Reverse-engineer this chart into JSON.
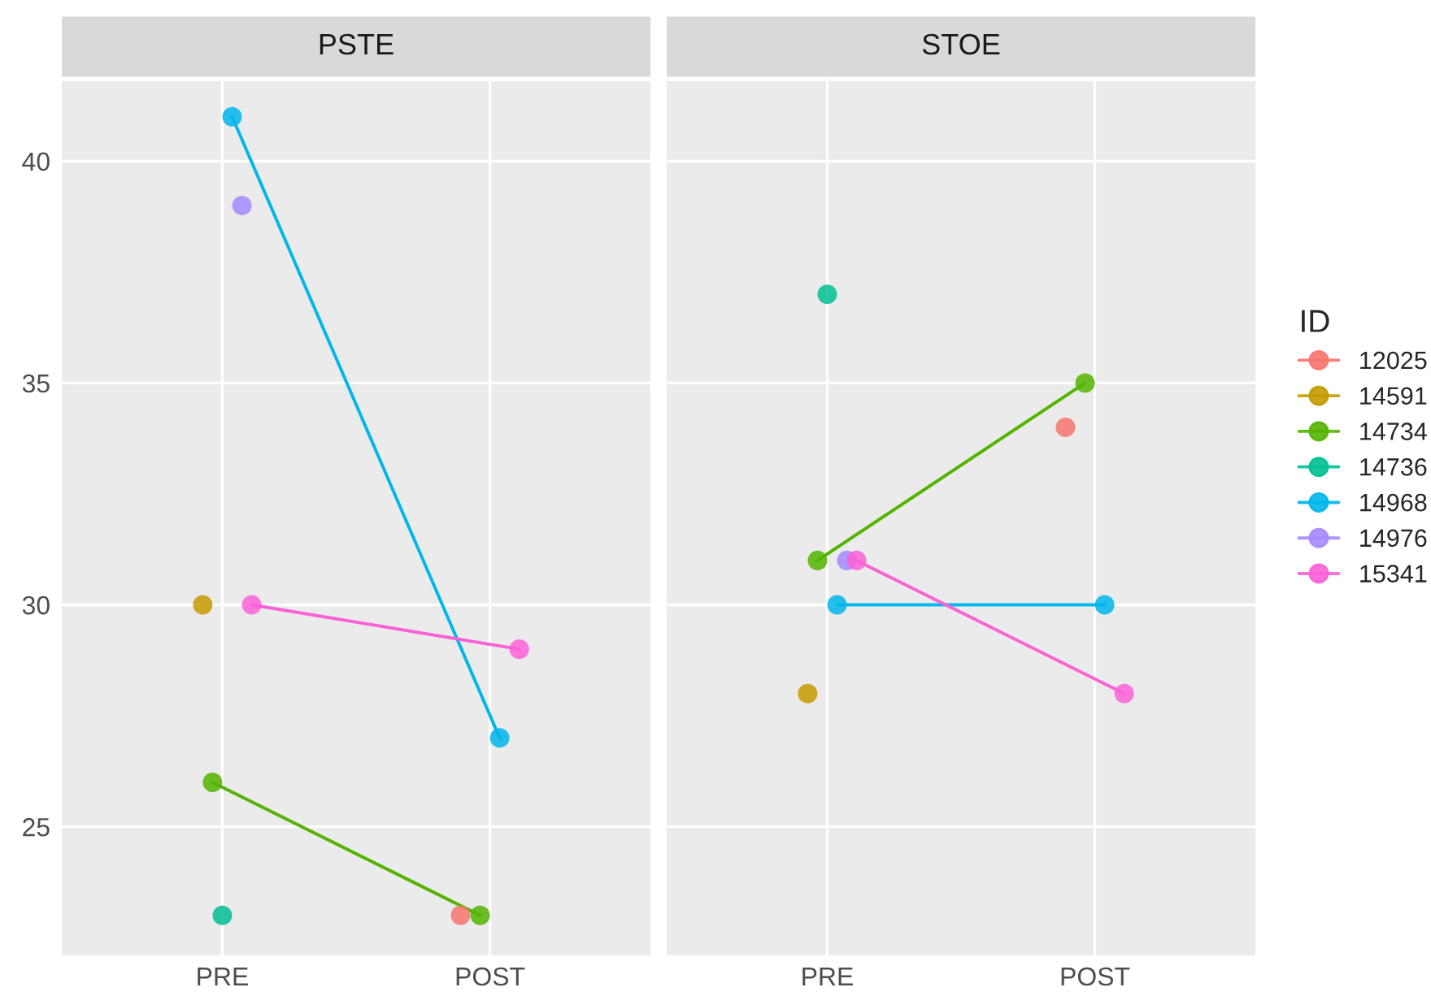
{
  "chart_data": [
    {
      "type": "line",
      "title": "PSTE",
      "categories": [
        "PRE",
        "POST"
      ],
      "ylim": [
        22.1,
        41.8
      ],
      "yticks": [
        25,
        30,
        35,
        40
      ],
      "grid": true,
      "marker": "circle",
      "line_style": "solid",
      "legend": "right",
      "legend_title": "ID",
      "series": [
        {
          "name": "12025",
          "color": "#F8766D",
          "values": [
            null,
            23
          ]
        },
        {
          "name": "14591",
          "color": "#C49A00",
          "values": [
            30,
            null
          ]
        },
        {
          "name": "14734",
          "color": "#53B400",
          "values": [
            26,
            23
          ]
        },
        {
          "name": "14736",
          "color": "#00C094",
          "values": [
            23,
            null
          ]
        },
        {
          "name": "14968",
          "color": "#00B6EB",
          "values": [
            41,
            27
          ]
        },
        {
          "name": "14976",
          "color": "#A58AFF",
          "values": [
            39,
            null
          ]
        },
        {
          "name": "15341",
          "color": "#FB61D7",
          "values": [
            30,
            29
          ]
        }
      ]
    },
    {
      "type": "line",
      "title": "STOE",
      "categories": [
        "PRE",
        "POST"
      ],
      "ylim": [
        22.1,
        41.8
      ],
      "yticks": [
        25,
        30,
        35,
        40
      ],
      "grid": true,
      "marker": "circle",
      "line_style": "solid",
      "tick_labels": "x",
      "series": [
        {
          "name": "12025",
          "color": "#F8766D",
          "values": [
            null,
            34
          ]
        },
        {
          "name": "14591",
          "color": "#C49A00",
          "values": [
            28,
            null
          ]
        },
        {
          "name": "14734",
          "color": "#53B400",
          "values": [
            31,
            35
          ]
        },
        {
          "name": "14736",
          "color": "#00C094",
          "values": [
            37,
            null
          ]
        },
        {
          "name": "14968",
          "color": "#00B6EB",
          "values": [
            30,
            30
          ]
        },
        {
          "name": "14976",
          "color": "#A58AFF",
          "values": [
            31,
            null
          ]
        },
        {
          "name": "15341",
          "color": "#FB61D7",
          "values": [
            31,
            28
          ]
        }
      ]
    }
  ]
}
